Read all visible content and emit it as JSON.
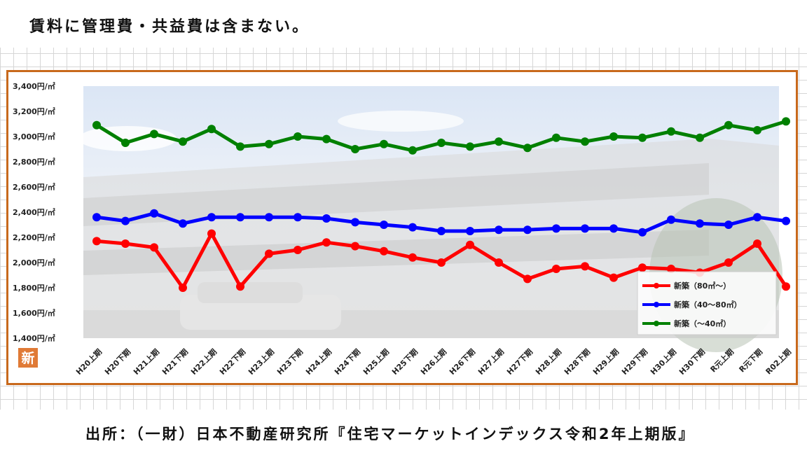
{
  "note": "賃料に管理費・共益費は含まない。",
  "source": "出所：（一財）日本不動産研究所『住宅マーケットインデックス令和2年上期版』",
  "badge": "新",
  "colors": {
    "frame": "#c8691c",
    "badge": "#e07a36"
  },
  "chart_data": {
    "type": "line",
    "categories": [
      "H20上期",
      "H20下期",
      "H21上期",
      "H21下期",
      "H22上期",
      "H22下期",
      "H23上期",
      "H23下期",
      "H24上期",
      "H24下期",
      "H25上期",
      "H25下期",
      "H26上期",
      "H26下期",
      "H27上期",
      "H27下期",
      "H28上期",
      "H28下期",
      "H29上期",
      "H29下期",
      "H30上期",
      "H30下期",
      "R元上期",
      "R元下期",
      "R02上期"
    ],
    "ylim": [
      1400,
      3400
    ],
    "yticks": [
      1400,
      1600,
      1800,
      2000,
      2200,
      2400,
      2600,
      2800,
      3000,
      3200,
      3400
    ],
    "ytick_labels": [
      "1,400円/㎡",
      "1,600円/㎡",
      "1,800円/㎡",
      "2,000円/㎡",
      "2,200円/㎡",
      "2,400円/㎡",
      "2,600円/㎡",
      "2,800円/㎡",
      "3,000円/㎡",
      "3,200円/㎡",
      "3,400円/㎡"
    ],
    "legend_position": "bottom-right",
    "series": [
      {
        "name": "新築（80㎡～）",
        "color": "#ff0000",
        "values": [
          2170,
          2150,
          2120,
          1800,
          2230,
          1810,
          2070,
          2100,
          2160,
          2130,
          2090,
          2040,
          2000,
          2140,
          2000,
          1870,
          1950,
          1970,
          1880,
          1960,
          1950,
          1920,
          2000,
          2150,
          1810
        ]
      },
      {
        "name": "新築（40～80㎡）",
        "color": "#0000ff",
        "values": [
          2360,
          2330,
          2390,
          2310,
          2360,
          2360,
          2360,
          2360,
          2350,
          2320,
          2300,
          2280,
          2250,
          2250,
          2260,
          2260,
          2270,
          2270,
          2270,
          2240,
          2340,
          2310,
          2300,
          2360,
          2330
        ]
      },
      {
        "name": "新築（～40㎡）",
        "color": "#008000",
        "values": [
          3090,
          2950,
          3020,
          2960,
          3060,
          2920,
          2940,
          3000,
          2980,
          2900,
          2940,
          2890,
          2950,
          2920,
          2960,
          2910,
          2990,
          2960,
          3000,
          2990,
          3040,
          2990,
          3090,
          3050,
          3120
        ]
      }
    ]
  }
}
